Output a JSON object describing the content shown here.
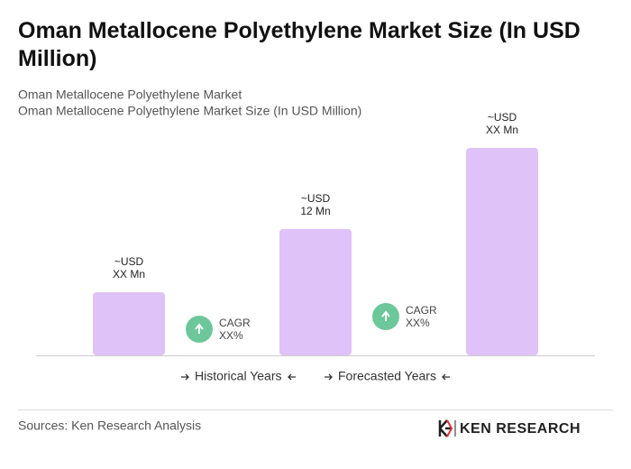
{
  "chart_data": {
    "type": "bar",
    "title": "Oman Metallocene Polyethylene Market Size (In USD Million)",
    "subtitle": [
      "Oman Metallocene Polyethylene Market",
      "Oman Metallocene Polyethylene Market Size (In USD Million)"
    ],
    "categories": [
      null,
      null,
      null
    ],
    "values": [
      6,
      12,
      19.7
    ],
    "value_labels": [
      [
        "~USD",
        "XX Mn"
      ],
      [
        "~USD",
        "12 Mn"
      ],
      [
        "~USD",
        "XX Mn"
      ]
    ],
    "color": "#dfc2f7",
    "annotations": [
      [
        "CAGR",
        "XX%"
      ],
      [
        "CAGR",
        "XX%"
      ]
    ],
    "annotation_color": "#6cc79a",
    "periods": [
      "Historical Years",
      "Forecasted Years"
    ],
    "source": "Sources: Ken Research Analysis",
    "logo": "KEN RESEARCH"
  }
}
